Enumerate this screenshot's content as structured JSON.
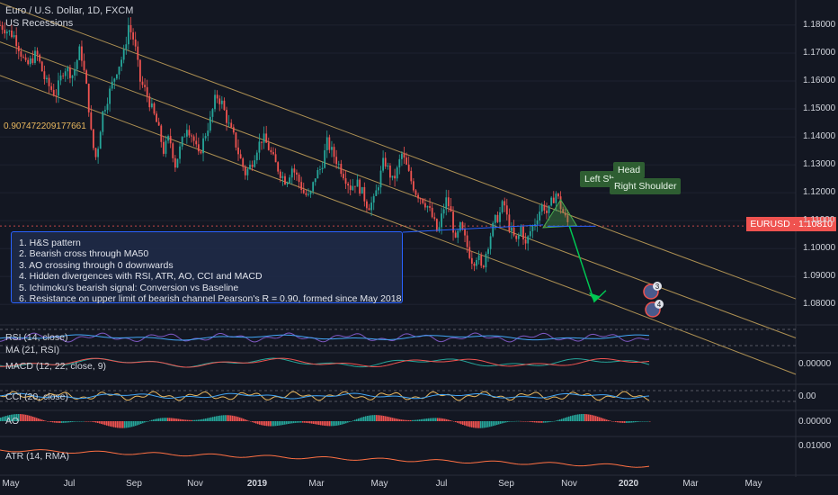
{
  "header": {
    "title": "Euro / U.S. Dollar, 1D, FXCM",
    "indicator": "US Recessions"
  },
  "pearson_label": "0.907472209177661",
  "price_tag": {
    "symbol": "EURUSD",
    "value": "1.10810",
    "color": "#ef5350"
  },
  "annotations": {
    "left_shoulder": "Left Sh",
    "head": "Head",
    "right_shoulder": "Right Shoulder",
    "event_3": "3",
    "event_4": "4"
  },
  "notes": [
    "1. H&S pattern",
    "2. Bearish cross through MA50",
    "3. AO crossing through 0 downwards",
    "4. Hidden divergences with RSI, ATR, AO, CCI and MACD",
    "5. Ichimoku's bearish signal: Conversion vs Baseline",
    "6. Resistance on upper limit of bearish channel Pearson's R = 0.90, formed since May 2018"
  ],
  "panes": {
    "rsi": "RSI (14, close)",
    "ma": "MA (21, RSI)",
    "macd": "MACD (12, 22, close, 9)",
    "cci": "CCI (20, close)",
    "ao": "AO",
    "atr": "ATR (14, RMA)"
  },
  "pane_axis": {
    "macd": "0.00000",
    "cci": "0.00",
    "ao": "0.00000",
    "atr": "0.01000"
  },
  "chart_data": {
    "type": "candlestick",
    "title": "Euro / U.S. Dollar, 1D, FXCM",
    "y_ticks": [
      "1.18000",
      "1.17000",
      "1.16000",
      "1.15000",
      "1.14000",
      "1.13000",
      "1.12000",
      "1.11000",
      "1.10000",
      "1.09000",
      "1.08000"
    ],
    "y_range": [
      1.073,
      1.189
    ],
    "x_ticks": [
      {
        "label": "May",
        "bold": false
      },
      {
        "label": "Jul",
        "bold": false
      },
      {
        "label": "Sep",
        "bold": false
      },
      {
        "label": "Nov",
        "bold": false
      },
      {
        "label": "2019",
        "bold": true
      },
      {
        "label": "Mar",
        "bold": false
      },
      {
        "label": "May",
        "bold": false
      },
      {
        "label": "Jul",
        "bold": false
      },
      {
        "label": "Sep",
        "bold": false
      },
      {
        "label": "Nov",
        "bold": false
      },
      {
        "label": "2020",
        "bold": true
      },
      {
        "label": "Mar",
        "bold": false
      },
      {
        "label": "May",
        "bold": false
      }
    ],
    "price_path": [
      [
        0,
        1.18
      ],
      [
        10,
        1.176
      ],
      [
        18,
        1.165
      ],
      [
        25,
        1.17
      ],
      [
        31,
        1.16
      ],
      [
        38,
        1.155
      ],
      [
        44,
        1.165
      ],
      [
        50,
        1.162
      ],
      [
        55,
        1.172
      ],
      [
        60,
        1.155
      ],
      [
        63,
        1.138
      ],
      [
        66,
        1.132
      ],
      [
        70,
        1.148
      ],
      [
        75,
        1.156
      ],
      [
        80,
        1.164
      ],
      [
        85,
        1.17
      ],
      [
        88,
        1.18
      ],
      [
        92,
        1.174
      ],
      [
        96,
        1.16
      ],
      [
        100,
        1.156
      ],
      [
        104,
        1.15
      ],
      [
        108,
        1.144
      ],
      [
        112,
        1.135
      ],
      [
        116,
        1.14
      ],
      [
        120,
        1.13
      ],
      [
        124,
        1.137
      ],
      [
        128,
        1.144
      ],
      [
        132,
        1.14
      ],
      [
        136,
        1.133
      ],
      [
        140,
        1.14
      ],
      [
        144,
        1.146
      ],
      [
        148,
        1.155
      ],
      [
        152,
        1.152
      ],
      [
        156,
        1.145
      ],
      [
        160,
        1.14
      ],
      [
        164,
        1.133
      ],
      [
        168,
        1.127
      ],
      [
        172,
        1.13
      ],
      [
        176,
        1.136
      ],
      [
        180,
        1.14
      ],
      [
        184,
        1.136
      ],
      [
        188,
        1.131
      ],
      [
        192,
        1.127
      ],
      [
        196,
        1.124
      ],
      [
        200,
        1.129
      ],
      [
        204,
        1.125
      ],
      [
        208,
        1.12
      ],
      [
        212,
        1.118
      ],
      [
        216,
        1.126
      ],
      [
        220,
        1.129
      ],
      [
        224,
        1.138
      ],
      [
        228,
        1.134
      ],
      [
        232,
        1.13
      ],
      [
        236,
        1.126
      ],
      [
        240,
        1.122
      ],
      [
        244,
        1.124
      ],
      [
        248,
        1.12
      ],
      [
        252,
        1.115
      ],
      [
        256,
        1.117
      ],
      [
        260,
        1.125
      ],
      [
        263,
        1.132
      ],
      [
        266,
        1.128
      ],
      [
        269,
        1.124
      ],
      [
        272,
        1.128
      ],
      [
        275,
        1.134
      ],
      [
        278,
        1.13
      ],
      [
        281,
        1.125
      ],
      [
        285,
        1.12
      ],
      [
        289,
        1.118
      ],
      [
        293,
        1.115
      ],
      [
        297,
        1.11
      ],
      [
        300,
        1.105
      ],
      [
        303,
        1.113
      ],
      [
        306,
        1.118
      ],
      [
        309,
        1.112
      ],
      [
        312,
        1.102
      ],
      [
        315,
        1.108
      ],
      [
        318,
        1.104
      ],
      [
        321,
        1.099
      ],
      [
        324,
        1.095
      ],
      [
        327,
        1.098
      ],
      [
        330,
        1.092
      ],
      [
        333,
        1.099
      ],
      [
        336,
        1.105
      ],
      [
        339,
        1.11
      ],
      [
        342,
        1.112
      ],
      [
        345,
        1.117
      ],
      [
        348,
        1.109
      ],
      [
        351,
        1.105
      ],
      [
        354,
        1.102
      ],
      [
        357,
        1.108
      ],
      [
        360,
        1.101
      ],
      [
        363,
        1.106
      ],
      [
        366,
        1.109
      ],
      [
        369,
        1.113
      ],
      [
        372,
        1.116
      ],
      [
        375,
        1.112
      ],
      [
        378,
        1.117
      ],
      [
        381,
        1.12
      ],
      [
        384,
        1.115
      ],
      [
        387,
        1.111
      ],
      [
        390,
        1.1081
      ]
    ],
    "x_index_range": [
      0,
      390
    ],
    "channel": {
      "upper": [
        [
          0,
          1.188
        ],
        [
          390,
          1.112
        ],
        [
          545,
          1.082
        ]
      ],
      "mid": [
        [
          0,
          1.174
        ],
        [
          545,
          1.068
        ]
      ],
      "lower": [
        [
          0,
          1.162
        ],
        [
          400,
          1.084
        ],
        [
          545,
          1.055
        ]
      ]
    },
    "forecast_arrow": [
      [
        390,
        1.108
      ],
      [
        407,
        1.081
      ],
      [
        415,
        1.085
      ]
    ],
    "neckline": [
      [
        375,
        1.108
      ],
      [
        408,
        1.108
      ]
    ],
    "last_price": 1.1081
  }
}
